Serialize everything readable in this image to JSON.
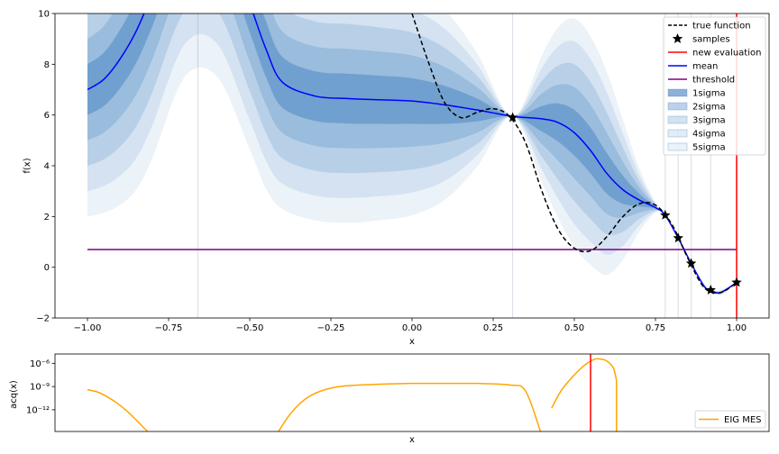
{
  "chart_data": [
    {
      "type": "line",
      "xlabel": "x",
      "ylabel": "f(x)",
      "xlim": [
        -1.1,
        1.1
      ],
      "ylim": [
        -2,
        10
      ],
      "xticks": [
        "−1.00",
        "−0.75",
        "−0.50",
        "−0.25",
        "0.00",
        "0.25",
        "0.50",
        "0.75",
        "1.00"
      ],
      "xtick_values": [
        -1.0,
        -0.75,
        -0.5,
        -0.25,
        0.0,
        0.25,
        0.5,
        0.75,
        1.0
      ],
      "yticks": [
        "−2",
        "0",
        "2",
        "4",
        "6",
        "8",
        "10"
      ],
      "ytick_values": [
        -2,
        0,
        2,
        4,
        6,
        8,
        10
      ],
      "legend_position": "top-right",
      "legend": [
        "true function",
        "samples",
        "new evaluation",
        "mean",
        "threshold",
        "1sigma",
        "2sigma",
        "3sigma",
        "4sigma",
        "5sigma"
      ],
      "vertical_lines_x": [
        -0.66,
        0.31,
        0.78,
        0.82,
        0.86,
        0.92
      ],
      "new_evaluation_x": 1.0,
      "threshold": 0.7,
      "threshold_range": [
        -1.0,
        1.0
      ],
      "samples": [
        [
          0.31,
          5.9
        ],
        [
          0.78,
          2.05
        ],
        [
          0.82,
          1.15
        ],
        [
          0.86,
          0.15
        ],
        [
          0.92,
          -0.9
        ],
        [
          1.0,
          -0.6
        ]
      ],
      "true_function": {
        "x": [
          0.0,
          0.05,
          0.1,
          0.15,
          0.2,
          0.25,
          0.3,
          0.35,
          0.4,
          0.45,
          0.5,
          0.55,
          0.6,
          0.65,
          0.7,
          0.75,
          0.8,
          0.85,
          0.9,
          0.95,
          1.0
        ],
        "y": [
          10.0,
          8.1,
          6.5,
          5.9,
          6.1,
          6.25,
          5.95,
          4.9,
          3.0,
          1.5,
          0.75,
          0.65,
          1.2,
          2.0,
          2.5,
          2.45,
          1.7,
          0.35,
          -0.8,
          -1.0,
          -0.6
        ]
      },
      "mean": {
        "x": [
          -1.0,
          -0.95,
          -0.9,
          -0.85,
          -0.8,
          -0.7,
          -0.6,
          -0.5,
          -0.45,
          -0.4,
          -0.3,
          -0.2,
          -0.1,
          0.0,
          0.1,
          0.2,
          0.31,
          0.4,
          0.45,
          0.5,
          0.55,
          0.6,
          0.65,
          0.7,
          0.75,
          0.78,
          0.82,
          0.86,
          0.9,
          0.92,
          0.95,
          1.0
        ],
        "y": [
          7.0,
          7.4,
          8.2,
          9.3,
          10.8,
          14.0,
          14.0,
          10.4,
          8.6,
          7.3,
          6.75,
          6.65,
          6.6,
          6.55,
          6.4,
          6.2,
          5.95,
          5.85,
          5.7,
          5.3,
          4.6,
          3.7,
          3.05,
          2.65,
          2.35,
          2.05,
          1.15,
          0.15,
          -0.75,
          -0.9,
          -1.0,
          -0.6
        ]
      },
      "sigma": {
        "x": [
          -1.0,
          -0.95,
          -0.9,
          -0.85,
          -0.8,
          -0.7,
          -0.6,
          -0.5,
          -0.45,
          -0.4,
          -0.3,
          -0.2,
          -0.1,
          0.0,
          0.1,
          0.2,
          0.31,
          0.4,
          0.45,
          0.5,
          0.55,
          0.6,
          0.65,
          0.7,
          0.75,
          0.78,
          0.82,
          0.86,
          0.9,
          0.92,
          0.95,
          1.0
        ],
        "y": [
          1.0,
          1.05,
          1.15,
          1.25,
          1.3,
          1.3,
          1.3,
          1.15,
          1.1,
          1.0,
          0.98,
          0.98,
          0.95,
          0.9,
          0.75,
          0.45,
          0.0,
          0.5,
          0.75,
          0.9,
          0.9,
          0.8,
          0.55,
          0.25,
          0.04,
          0.0,
          0.0,
          0.0,
          0.02,
          0.0,
          0.02,
          0.0
        ]
      },
      "colors": {
        "true_function": "#000000",
        "samples": "#000000",
        "new_evaluation": "#ff0000",
        "mean": "#0000ff",
        "threshold": "#800080",
        "band": "#3f7fbf",
        "vlines": "#d8dde4"
      }
    },
    {
      "type": "line",
      "xlabel": "x",
      "ylabel": "acq(x)",
      "yscale": "log",
      "yticks": [
        "10⁻⁶",
        "10⁻⁹",
        "10⁻¹²"
      ],
      "ytick_exponents": [
        -6,
        -9,
        -12
      ],
      "legend_position": "lower-right",
      "series": [
        {
          "name": "EIG MES",
          "x": [
            -1.0,
            -0.97,
            -0.94,
            -0.91,
            -0.88,
            -0.85,
            -0.82,
            -0.8,
            -0.42,
            -0.38,
            -0.34,
            -0.3,
            -0.25,
            -0.2,
            -0.1,
            0.0,
            0.1,
            0.2,
            0.3,
            0.35,
            0.4,
            0.43,
            0.46,
            0.5,
            0.53,
            0.56,
            0.58,
            0.6,
            0.62,
            0.63
          ],
          "y_exp": [
            -9.4,
            -9.7,
            -10.3,
            -11.1,
            -12.1,
            -13.3,
            -14.6,
            -15.0,
            -15.0,
            -12.8,
            -11.0,
            -9.9,
            -9.2,
            -8.9,
            -8.7,
            -8.6,
            -8.6,
            -8.6,
            -8.8,
            -9.6,
            -15.0,
            -11.8,
            -9.5,
            -7.5,
            -6.3,
            -5.5,
            -5.45,
            -5.7,
            -6.6,
            -8.2
          ]
        }
      ],
      "new_evaluation_x": 0.55,
      "colors": {
        "line": "#ffa500",
        "new_evaluation": "#ff0000"
      }
    }
  ]
}
